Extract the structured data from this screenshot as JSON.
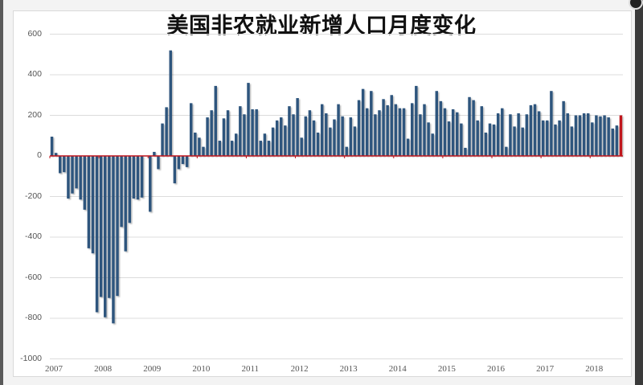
{
  "window": {
    "title": "美国非农就业新增人口月度变化"
  },
  "chart_data": {
    "type": "bar",
    "title": "美国非农就业新增人口月度变化",
    "xlabel": "",
    "ylabel": "",
    "ylim": [
      -1000,
      600
    ],
    "yticks": [
      600,
      400,
      200,
      0,
      -200,
      -400,
      -600,
      -800,
      -1000
    ],
    "ytick_labels": [
      "600",
      "400",
      "200",
      "0",
      "-200",
      "-400",
      "-600",
      "-800",
      "-1000"
    ],
    "xtick_labels": [
      "2007",
      "2008",
      "2009",
      "2010",
      "2011",
      "2012",
      "2013",
      "2014",
      "2015",
      "2016",
      "2017",
      "2018"
    ],
    "grid": true,
    "legend": null,
    "colors": {
      "bar": "#2e557d",
      "last_bar": "#c0141b",
      "zero_line": "#c0141b",
      "grid": "#dcdcdc"
    },
    "start": "2007-01",
    "frequency": "monthly",
    "values": [
      95,
      15,
      -85,
      -80,
      -210,
      -185,
      -160,
      -215,
      -265,
      -455,
      -480,
      -770,
      -695,
      -795,
      -700,
      -825,
      -690,
      -350,
      -470,
      -330,
      -210,
      -215,
      -205,
      0,
      -275,
      20,
      -65,
      160,
      240,
      520,
      -135,
      -65,
      -40,
      -55,
      260,
      115,
      90,
      45,
      190,
      225,
      345,
      75,
      185,
      225,
      75,
      110,
      245,
      205,
      360,
      230,
      230,
      75,
      110,
      75,
      140,
      175,
      190,
      150,
      245,
      205,
      285,
      90,
      195,
      225,
      175,
      115,
      255,
      210,
      140,
      180,
      255,
      195,
      45,
      190,
      145,
      275,
      330,
      235,
      320,
      205,
      225,
      280,
      250,
      300,
      255,
      235,
      235,
      85,
      260,
      345,
      205,
      255,
      165,
      110,
      320,
      270,
      235,
      170,
      230,
      215,
      160,
      40,
      290,
      275,
      175,
      245,
      115,
      160,
      155,
      210,
      235,
      45,
      205,
      145,
      210,
      140,
      205,
      250,
      255,
      220,
      175,
      175,
      320,
      155,
      175,
      270,
      210,
      145,
      200,
      200,
      210,
      210,
      165,
      200,
      195,
      200,
      190,
      135,
      150,
      200
    ]
  }
}
